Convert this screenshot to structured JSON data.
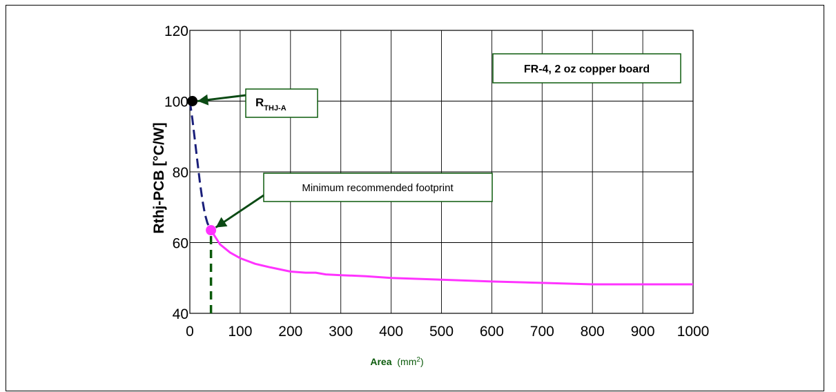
{
  "chart_data": {
    "type": "line",
    "xlabel": "Area",
    "xlabel_unit": "(mm",
    "xlabel_unit_sup": "2",
    "xlabel_unit_close": ")",
    "ylabel": "Rthj-PCB [°C/W]",
    "xlim": [
      0,
      1000
    ],
    "ylim": [
      40,
      120
    ],
    "x_ticks": [
      0,
      100,
      200,
      300,
      400,
      500,
      600,
      700,
      800,
      900,
      1000
    ],
    "y_ticks": [
      40,
      60,
      80,
      100,
      120
    ],
    "grid": true,
    "series": [
      {
        "style": "dashed",
        "color": "#1a1f7a",
        "x": [
          0,
          5,
          10,
          15,
          20,
          25,
          30,
          35,
          40,
          42
        ],
        "y": [
          100,
          95,
          89,
          83,
          77,
          72,
          68,
          65.5,
          64,
          63.5
        ]
      },
      {
        "style": "solid",
        "color": "#ff33ff",
        "x": [
          42,
          60,
          80,
          100,
          130,
          160,
          200,
          230,
          250,
          270,
          300,
          350,
          400,
          500,
          600,
          700,
          800,
          900,
          1000
        ],
        "y": [
          63.5,
          59.5,
          57.2,
          55.6,
          54,
          53,
          51.8,
          51.5,
          51.5,
          51,
          50.8,
          50.5,
          50,
          49.5,
          49,
          48.6,
          48.2,
          48.2,
          48.2
        ]
      }
    ],
    "markers": [
      {
        "x": 5,
        "y": 100,
        "color": "#000000"
      },
      {
        "x": 42,
        "y": 63.5,
        "color": "#ff33ff"
      }
    ],
    "vline": {
      "x": 42,
      "y_from": 40,
      "y_to": 63.5,
      "color": "#0b5a0b"
    },
    "annotations": [
      {
        "text": "R",
        "sub": "THJ-A",
        "bold": true,
        "target": {
          "x": 10,
          "y": 100
        }
      },
      {
        "text": "Minimum recommended footprint",
        "bold": false,
        "target": {
          "x": 46,
          "y": 63.5
        }
      },
      {
        "text": "FR-4, 2 oz copper board",
        "bold": true
      }
    ]
  }
}
